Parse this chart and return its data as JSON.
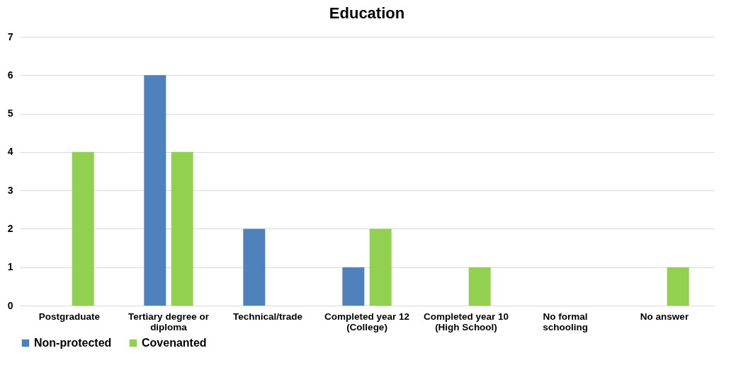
{
  "chart_data": {
    "type": "bar",
    "title": "Education",
    "categories": [
      "Postgraduate",
      "Tertiary degree or diploma",
      "Technical/trade",
      "Completed year 12 (College)",
      "Completed year 10 (High School)",
      "No formal schooling",
      "No answer"
    ],
    "series": [
      {
        "name": "Non-protected",
        "color": "#4f81bd",
        "values": [
          0,
          6,
          2,
          1,
          0,
          0,
          0
        ]
      },
      {
        "name": "Covenanted",
        "color": "#92d050",
        "values": [
          4,
          4,
          0,
          2,
          1,
          0,
          1
        ]
      }
    ],
    "ylim": [
      0,
      7
    ],
    "yticks": [
      0,
      1,
      2,
      3,
      4,
      5,
      6,
      7
    ],
    "grid": "y",
    "legend": "bottom"
  }
}
